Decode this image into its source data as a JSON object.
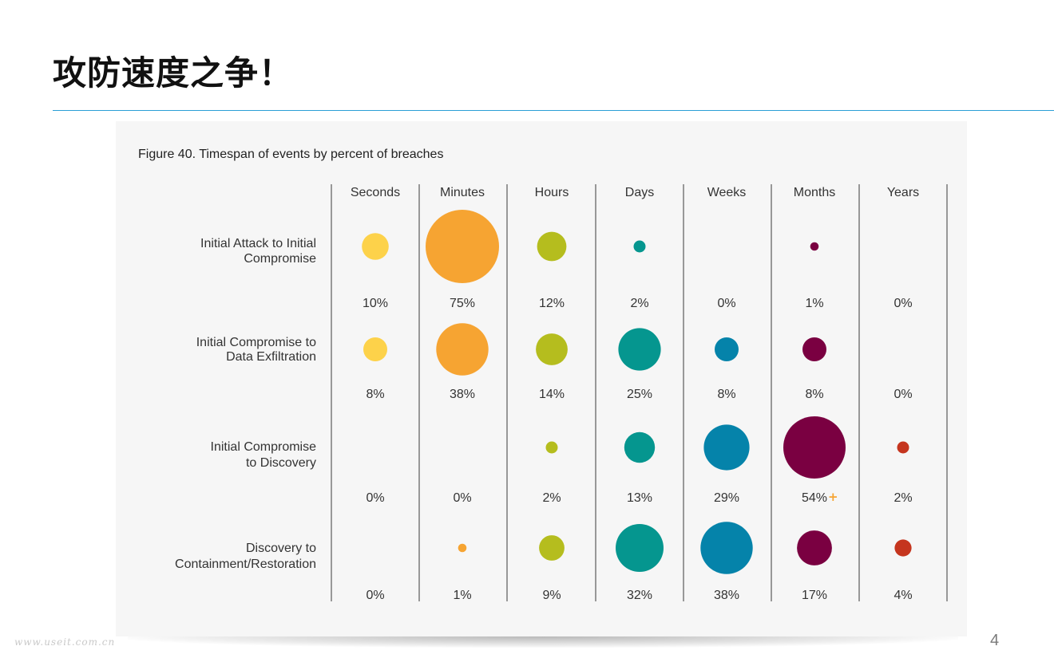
{
  "slide": {
    "title": "攻防速度之争！",
    "page_number": "4",
    "watermark": "www.useit.com.cn"
  },
  "chart_data": {
    "type": "bubble-matrix",
    "title": "Figure 40. Timespan of events by percent of breaches",
    "columns": [
      "Seconds",
      "Minutes",
      "Hours",
      "Days",
      "Weeks",
      "Months",
      "Years"
    ],
    "column_colors": [
      "#fdd24a",
      "#f6a432",
      "#b5bd1e",
      "#05968f",
      "#0583aa",
      "#7a0041",
      "#c5351e"
    ],
    "rows": [
      {
        "label_lines": [
          "Initial Attack to Initial",
          "Compromise"
        ],
        "values": [
          10,
          75,
          12,
          2,
          0,
          1,
          0
        ],
        "labels": [
          "10%",
          "75%",
          "12%",
          "2%",
          "0%",
          "1%",
          "0%"
        ]
      },
      {
        "label_lines": [
          "Initial Compromise to",
          "Data Exfiltration"
        ],
        "values": [
          8,
          38,
          14,
          25,
          8,
          8,
          0
        ],
        "labels": [
          "8%",
          "38%",
          "14%",
          "25%",
          "8%",
          "8%",
          "0%"
        ]
      },
      {
        "label_lines": [
          "Initial Compromise",
          "to Discovery"
        ],
        "values": [
          0,
          0,
          2,
          13,
          29,
          54,
          2
        ],
        "labels": [
          "0%",
          "0%",
          "2%",
          "13%",
          "29%",
          "54%",
          "2%"
        ]
      },
      {
        "label_lines": [
          "Discovery to",
          "Containment/Restoration"
        ],
        "values": [
          0,
          1,
          9,
          32,
          38,
          17,
          4
        ],
        "labels": [
          "0%",
          "1%",
          "9%",
          "32%",
          "38%",
          "17%",
          "4%"
        ]
      }
    ],
    "annotations": [
      {
        "row": 2,
        "column": 5,
        "marker": "+",
        "color": "#f6a432"
      }
    ],
    "value_unit": "percent of breaches"
  }
}
